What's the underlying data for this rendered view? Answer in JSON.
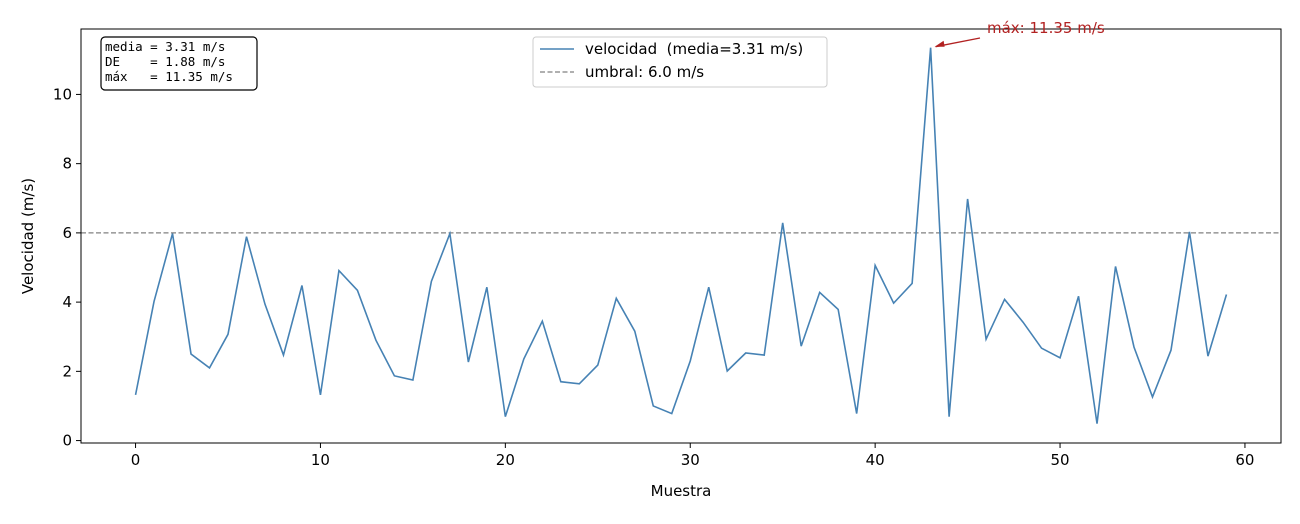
{
  "chart_data": {
    "type": "line",
    "xlabel": "Muestra",
    "ylabel": "Velocidad (m/s)",
    "x": [
      0,
      1,
      2,
      3,
      4,
      5,
      6,
      7,
      8,
      9,
      10,
      11,
      12,
      13,
      14,
      15,
      16,
      17,
      18,
      19,
      20,
      21,
      22,
      23,
      24,
      25,
      26,
      27,
      28,
      29,
      30,
      31,
      32,
      33,
      34,
      35,
      36,
      37,
      38,
      39,
      40,
      41,
      42,
      43,
      44,
      45,
      46,
      47,
      48,
      49,
      50,
      51,
      52,
      53,
      54,
      55,
      56,
      57,
      58,
      59
    ],
    "series": [
      {
        "name": "velocidad  (media=3.31 m/s)",
        "color": "#4682b4",
        "values": [
          1.32,
          4.02,
          5.98,
          2.5,
          2.1,
          3.07,
          5.89,
          3.94,
          2.47,
          4.48,
          1.32,
          4.91,
          4.34,
          2.9,
          1.87,
          1.75,
          4.6,
          5.98,
          2.27,
          4.43,
          0.69,
          2.36,
          3.45,
          1.7,
          1.64,
          2.18,
          4.11,
          3.16,
          1.0,
          0.78,
          2.3,
          4.43,
          2.01,
          2.53,
          2.47,
          6.29,
          2.73,
          4.28,
          3.79,
          0.78,
          5.06,
          3.97,
          4.54,
          11.35,
          0.69,
          6.98,
          2.93,
          4.08,
          3.42,
          2.67,
          2.39,
          4.17,
          0.49,
          5.03,
          2.7,
          1.26,
          2.61,
          6.03,
          2.44,
          4.22
        ]
      }
    ],
    "threshold": {
      "name": "umbral: 6.0 m/s",
      "value": 6.0,
      "color": "#808080"
    },
    "annotation": {
      "text": "máx: 11.35 m/s",
      "x": 43,
      "y": 11.35,
      "color": "#b22222"
    },
    "stats_box": [
      "media = 3.31 m/s",
      "DE    = 1.88 m/s",
      "máx   = 11.35 m/s"
    ],
    "xlim": [
      -2.95,
      61.95
    ],
    "ylim": [
      -0.07,
      11.89
    ],
    "xticks": [
      0,
      10,
      20,
      30,
      40,
      50,
      60
    ],
    "yticks": [
      0,
      2,
      4,
      6,
      8,
      10
    ],
    "legend": "upper center"
  }
}
